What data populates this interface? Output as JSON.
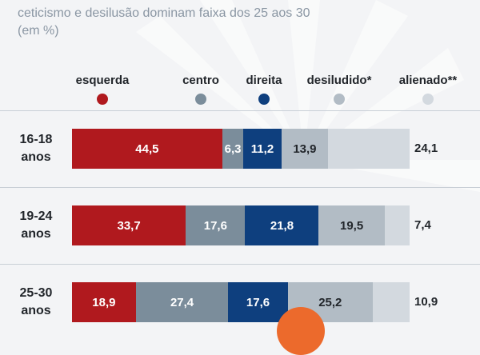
{
  "subtitle_line1": "ceticismo e desilusão dominam faixa dos 25 aos 30",
  "subtitle_line2": "(em %)",
  "chart_data": {
    "type": "bar",
    "orientation": "horizontal-stacked",
    "categories": [
      "16-18 anos",
      "19-24 anos",
      "25-30 anos"
    ],
    "category_lines": [
      [
        "16-18",
        "anos"
      ],
      [
        "19-24",
        "anos"
      ],
      [
        "25-30",
        "anos"
      ]
    ],
    "series": [
      {
        "name": "esquerda",
        "color": "#b0191e",
        "text_color": "#ffffff",
        "values": [
          44.5,
          33.7,
          18.9
        ],
        "labels": [
          "44,5",
          "33,7",
          "18,9"
        ]
      },
      {
        "name": "centro",
        "color": "#7b8d9b",
        "text_color": "#ffffff",
        "values": [
          6.3,
          17.6,
          27.4
        ],
        "labels": [
          "6,3",
          "17,6",
          "27,4"
        ]
      },
      {
        "name": "direita",
        "color": "#0e3f7e",
        "text_color": "#ffffff",
        "values": [
          11.2,
          21.8,
          17.6
        ],
        "labels": [
          "11,2",
          "21,8",
          "17,6"
        ]
      },
      {
        "name": "desiludido*",
        "color": "#b2bcc5",
        "text_color": "#22262b",
        "values": [
          13.9,
          19.5,
          25.2
        ],
        "labels": [
          "13,9",
          "19,5",
          "25,2"
        ]
      },
      {
        "name": "alienado**",
        "color": "#d3d9df",
        "text_color": "#22262b",
        "values": [
          24.1,
          7.4,
          10.9
        ],
        "labels": [
          "24,1",
          "7,4",
          "10,9"
        ]
      }
    ],
    "xlim": [
      0,
      100
    ],
    "legend_position": "top"
  }
}
